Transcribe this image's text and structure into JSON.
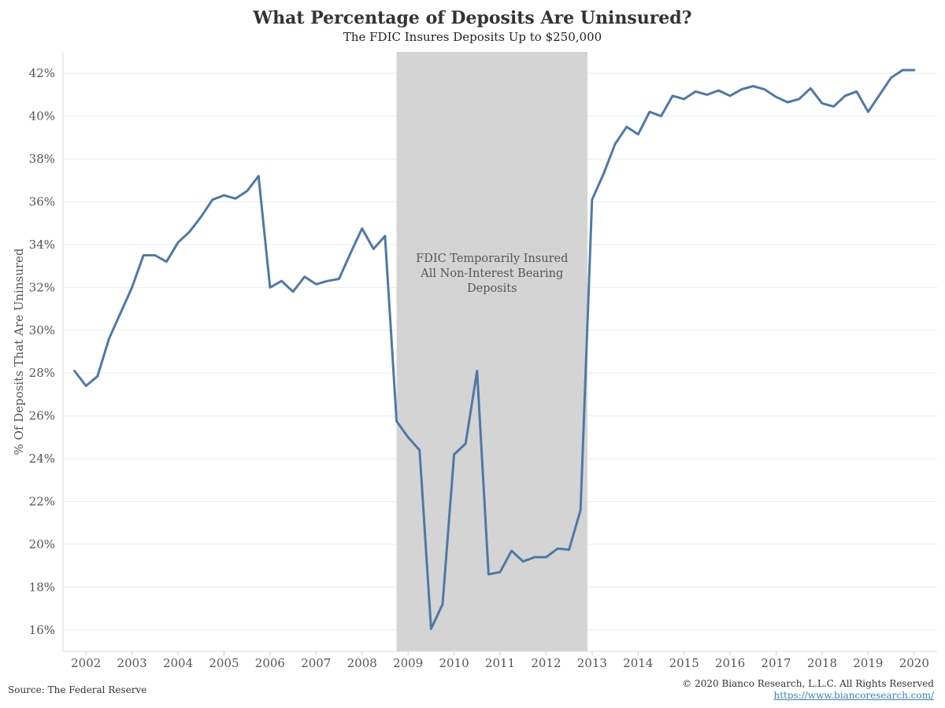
{
  "chart_data": {
    "type": "line",
    "title": "What Percentage of Deposits Are Uninsured?",
    "subtitle": "The FDIC Insures Deposits Up to $250,000",
    "xlabel": "",
    "ylabel": "% Of Deposits That Are Uninsured",
    "ylim": [
      15,
      43
    ],
    "y_ticks": [
      16,
      18,
      20,
      22,
      24,
      26,
      28,
      30,
      32,
      34,
      36,
      38,
      40,
      42
    ],
    "y_tick_suffix": "%",
    "x_ticks": [
      "2002",
      "2003",
      "2004",
      "2005",
      "2006",
      "2007",
      "2008",
      "2009",
      "2010",
      "2011",
      "2012",
      "2013",
      "2014",
      "2015",
      "2016",
      "2017",
      "2018",
      "2019",
      "2020"
    ],
    "grid": "horizontal",
    "line_color": "#4e79a7",
    "shaded_region": {
      "x_start": 2008.75,
      "x_end": 2012.9,
      "color": "#d4d4d4",
      "label": [
        "FDIC Temporarily Insured",
        "All Non-Interest Bearing",
        "Deposits"
      ]
    },
    "series": [
      {
        "x": [
          2001.75,
          2002.0,
          2002.25,
          2002.5,
          2002.75,
          2003.0,
          2003.25,
          2003.5,
          2003.75,
          2004.0,
          2004.25,
          2004.5,
          2004.75,
          2005.0,
          2005.25,
          2005.5,
          2005.75,
          2006.0,
          2006.25,
          2006.5,
          2006.75,
          2007.0,
          2007.25,
          2007.5,
          2007.75,
          2008.0,
          2008.25,
          2008.5,
          2008.75,
          2009.0,
          2009.25,
          2009.5,
          2009.75,
          2010.0,
          2010.25,
          2010.5,
          2010.75,
          2011.0,
          2011.25,
          2011.5,
          2011.75,
          2012.0,
          2012.25,
          2012.5,
          2012.75,
          2013.0,
          2013.25,
          2013.5,
          2013.75,
          2014.0,
          2014.25,
          2014.5,
          2014.75,
          2015.0,
          2015.25,
          2015.5,
          2015.75,
          2016.0,
          2016.25,
          2016.5,
          2016.75,
          2017.0,
          2017.25,
          2017.5,
          2017.75,
          2018.0,
          2018.25,
          2018.5,
          2018.75,
          2019.0,
          2019.25,
          2019.5,
          2019.75,
          2020.0
        ],
        "values": [
          28.1,
          27.4,
          27.85,
          29.6,
          30.8,
          32.0,
          33.5,
          33.5,
          33.2,
          34.1,
          34.6,
          35.3,
          36.1,
          36.3,
          36.15,
          36.5,
          37.2,
          32.0,
          32.3,
          31.8,
          32.5,
          32.15,
          32.3,
          32.4,
          33.6,
          34.75,
          33.8,
          34.4,
          25.75,
          25.0,
          24.4,
          16.05,
          17.2,
          24.2,
          24.7,
          28.1,
          18.6,
          18.7,
          19.7,
          19.2,
          19.4,
          19.4,
          19.8,
          19.75,
          21.6,
          36.1,
          37.3,
          38.7,
          39.5,
          39.15,
          40.2,
          40.0,
          40.95,
          40.8,
          41.15,
          41.0,
          41.2,
          40.95,
          41.25,
          41.4,
          41.25,
          40.9,
          40.65,
          40.8,
          41.3,
          40.6,
          40.45,
          40.95,
          41.15,
          40.2,
          41.0,
          41.8,
          42.15,
          42.15
        ]
      }
    ]
  },
  "footer": {
    "source": "Source: The Federal Reserve",
    "copyright": "© 2020 Bianco Research, L.L.C. All Rights Reserved",
    "url": "https://www.biancoresearch.com/"
  }
}
